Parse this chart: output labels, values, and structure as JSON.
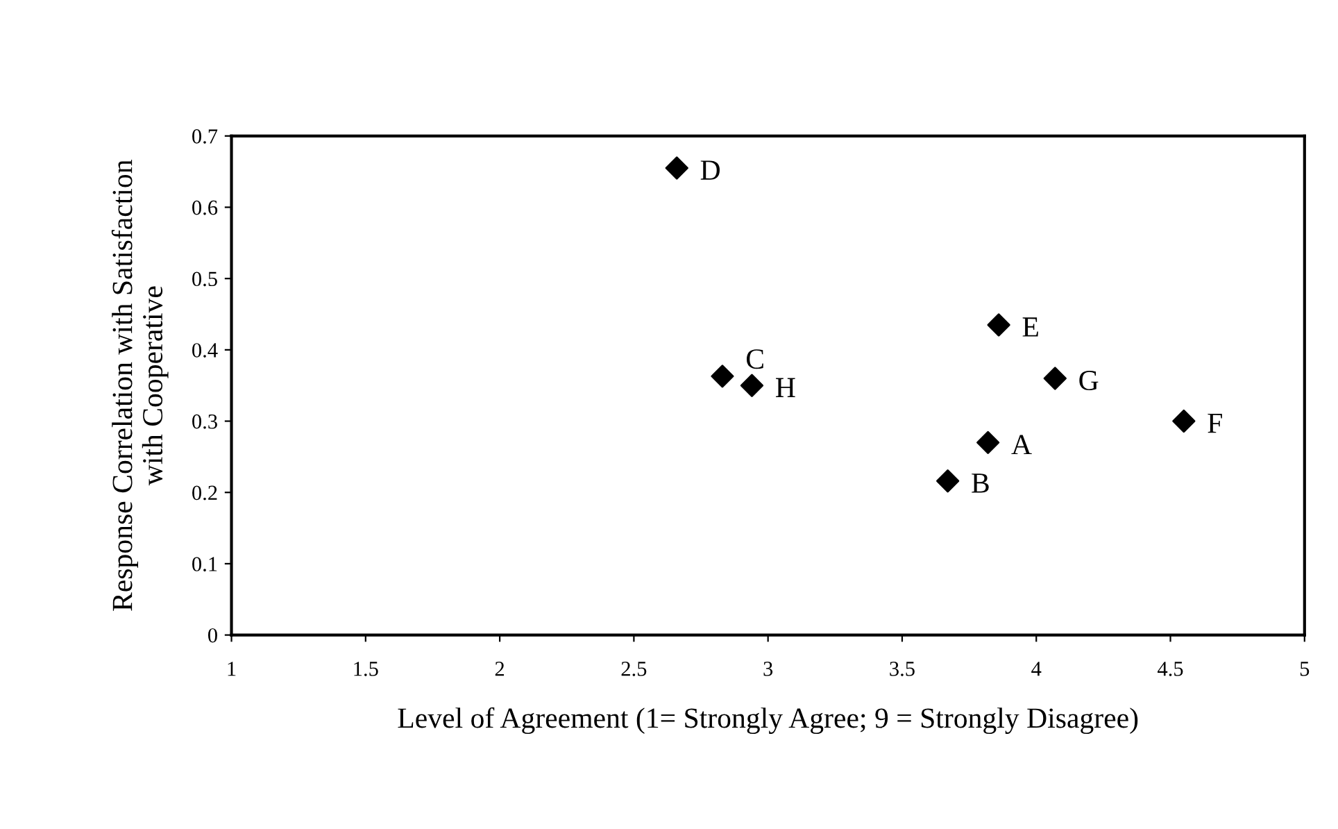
{
  "chart_data": {
    "type": "scatter",
    "xlabel": "Level of Agreement (1= Strongly Agree; 9 = Strongly Disagree)",
    "ylabel": "Response Correlation with Satisfaction\nwith Cooperative",
    "x": [
      3.82,
      3.67,
      2.83,
      2.66,
      3.86,
      4.55,
      4.07,
      2.94
    ],
    "values": [
      0.27,
      0.216,
      0.363,
      0.655,
      0.435,
      0.3,
      0.36,
      0.35
    ],
    "color": "#000000",
    "marker": "diamond",
    "grid": false,
    "legend": false,
    "annotations": [
      {
        "text": "A",
        "x": 3.82,
        "y": 0.27
      },
      {
        "text": "B",
        "x": 3.67,
        "y": 0.216
      },
      {
        "text": "C",
        "x": 2.83,
        "y": 0.363
      },
      {
        "text": "D",
        "x": 2.66,
        "y": 0.655
      },
      {
        "text": "E",
        "x": 3.86,
        "y": 0.435
      },
      {
        "text": "F",
        "x": 4.55,
        "y": 0.3
      },
      {
        "text": "G",
        "x": 4.07,
        "y": 0.36
      },
      {
        "text": "H",
        "x": 2.94,
        "y": 0.35
      }
    ],
    "xlim": [
      1,
      5
    ],
    "xticks": [
      1,
      1.5,
      2,
      2.5,
      3,
      3.5,
      4,
      4.5,
      5
    ],
    "ylim": [
      0,
      0.7
    ],
    "yticks": [
      0,
      0.1,
      0.2,
      0.3,
      0.4,
      0.5,
      0.6,
      0.7
    ]
  }
}
